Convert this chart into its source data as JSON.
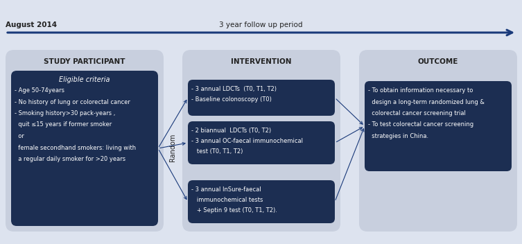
{
  "bg_color": "#dde3ef",
  "panel_bg": "#c8cfde",
  "dark_box_color": "#1c2e52",
  "dark_box_text": "#ffffff",
  "title_color": "#222222",
  "arrow_color": "#1a3a7a",
  "col1_title": "STUDY PARTICIPANT",
  "col2_title": "INTERVENTION",
  "col3_title": "OUTCOME",
  "col1_eligible": "Eligible criteria",
  "col1_lines": [
    "- Age 50-74years",
    "- No history of lung or colorectal cancer",
    "- Smoking history>30 pack-years ,",
    "  quit ≤15 years if former smoker",
    "  or",
    "  female secondhand smokers: living with",
    "  a regular daily smoker for >20 years"
  ],
  "box1_lines": [
    "- 3 annual LDCTs  (T0, T1, T2)",
    "- Baseline colonoscopy (T0)"
  ],
  "box2_lines": [
    "- 2 biannual  LDCTs (T0, T2)",
    "- 3 annual OC-faecal immunochemical",
    "   test (T0, T1, T2)"
  ],
  "box3_lines": [
    "- 3 annual InSure-faecal",
    "   immunochemical tests",
    "   + Septin 9 test (T0, T1, T2)."
  ],
  "outcome_lines": [
    "- To obtain information necessary to",
    "  design a long-term randomized lung &",
    "  colorectal cancer screening trial",
    "- To test colorectal cancer screening",
    "  strategies in China."
  ],
  "random_label": "Random",
  "timeline_left": "August 2014",
  "timeline_mid": "3 year follow up period",
  "fig_width": 7.53,
  "fig_height": 3.52
}
